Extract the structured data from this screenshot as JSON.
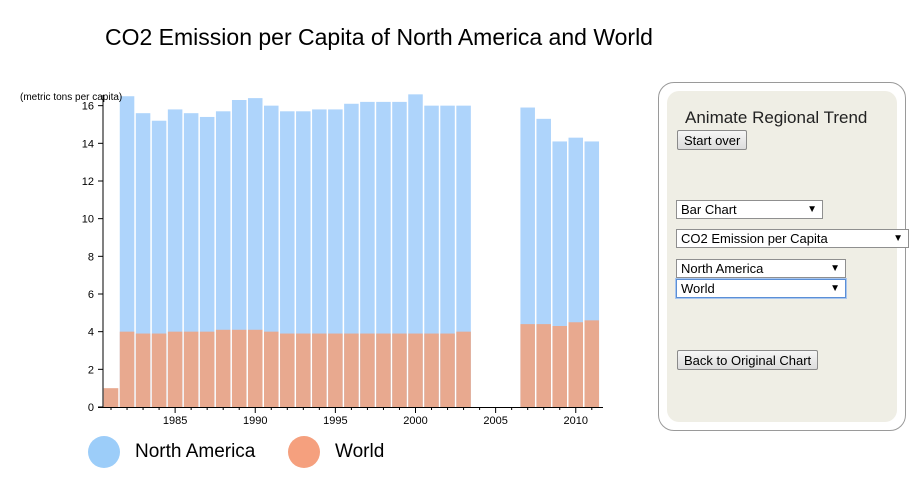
{
  "title": "CO2 Emission per Capita of North America and World",
  "chart_data": {
    "type": "bar",
    "ylabel": "(metric tons per capita)",
    "ylim": [
      0,
      16.3
    ],
    "yticks": [
      0,
      2,
      4,
      6,
      8,
      10,
      12,
      14,
      16
    ],
    "xlim": [
      1980.5,
      2011.7
    ],
    "xticks": [
      1985,
      1990,
      1995,
      2000,
      2005,
      2010
    ],
    "x": [
      1981,
      1982,
      1983,
      1984,
      1985,
      1986,
      1987,
      1988,
      1989,
      1990,
      1991,
      1992,
      1993,
      1994,
      1995,
      1996,
      1997,
      1998,
      1999,
      2000,
      2001,
      2002,
      2003,
      2007,
      2008,
      2009,
      2010,
      2011
    ],
    "series": [
      {
        "name": "North America",
        "color": "#aed4fb",
        "values": [
          null,
          16.5,
          15.6,
          15.2,
          15.8,
          15.6,
          15.4,
          15.7,
          16.3,
          16.4,
          16.0,
          15.7,
          15.7,
          15.8,
          15.8,
          16.1,
          16.2,
          16.2,
          16.2,
          16.6,
          16.0,
          16.0,
          16.0,
          15.9,
          15.3,
          14.1,
          14.3,
          14.1
        ]
      },
      {
        "name": "World",
        "color": "#e8a98f",
        "values": [
          1.0,
          4.0,
          3.9,
          3.9,
          4.0,
          4.0,
          4.0,
          4.1,
          4.1,
          4.1,
          4.0,
          3.9,
          3.9,
          3.9,
          3.9,
          3.9,
          3.9,
          3.9,
          3.9,
          3.9,
          3.9,
          3.9,
          4.0,
          4.4,
          4.4,
          4.3,
          4.5,
          4.6
        ]
      }
    ]
  },
  "legend": [
    {
      "label": "North America",
      "color": "#9ccdf9"
    },
    {
      "label": "World",
      "color": "#f5a07e"
    }
  ],
  "panel": {
    "title": "Animate Regional Trend",
    "start_over": "Start over",
    "chart_type": "Bar Chart",
    "indicator": "CO2 Emission per Capita",
    "region1": "North America",
    "region2": "World",
    "back": "Back to Original Chart",
    "arrow": "▼"
  }
}
